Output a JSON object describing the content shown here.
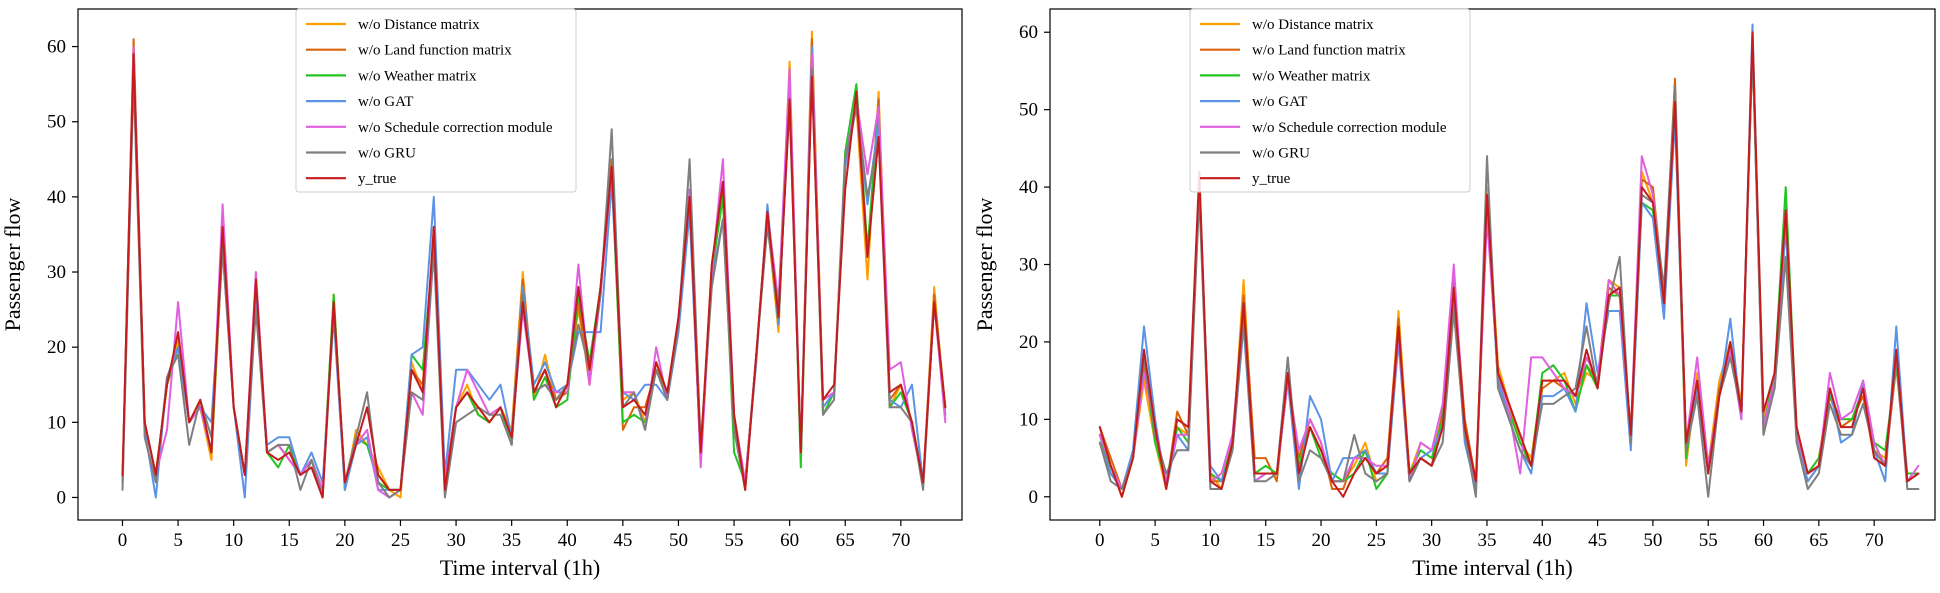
{
  "chart_data": [
    {
      "type": "line",
      "xlabel": "Time interval (1h)",
      "ylabel": "Passenger flow",
      "xlim": [
        -4,
        75.5
      ],
      "ylim": [
        -3,
        65
      ],
      "xticks": [
        0,
        5,
        10,
        15,
        20,
        25,
        30,
        35,
        40,
        45,
        50,
        55,
        60,
        65,
        70
      ],
      "yticks": [
        0,
        10,
        20,
        30,
        40,
        50,
        60
      ],
      "grid": false,
      "legend_position": "top-center",
      "series": [
        {
          "name": "w/o Distance matrix",
          "color": "#ff9f00",
          "values": [
            2,
            60,
            10,
            3,
            15,
            21,
            10,
            12,
            5,
            34,
            12,
            3,
            28,
            6,
            7,
            5,
            3,
            5,
            0,
            27,
            1,
            9,
            7,
            4,
            1,
            0,
            18,
            14,
            34,
            2,
            12,
            15,
            11,
            10,
            12,
            9,
            30,
            13,
            19,
            13,
            15,
            25,
            16,
            28,
            43,
            13,
            14,
            10,
            18,
            13,
            24,
            40,
            5,
            30,
            40,
            10,
            1,
            19,
            37,
            22,
            58,
            5,
            62,
            12,
            14,
            45,
            52,
            29,
            54,
            12,
            15,
            10,
            2,
            28,
            11
          ]
        },
        {
          "name": "w/o Land function matrix",
          "color": "#d9640c",
          "values": [
            2,
            61,
            10,
            3,
            15,
            20,
            10,
            12,
            6,
            35,
            12,
            3,
            28,
            6,
            7,
            5,
            3,
            5,
            1,
            26,
            2,
            8,
            7,
            3,
            1,
            1,
            17,
            15,
            34,
            2,
            12,
            14,
            11,
            10,
            12,
            8,
            29,
            14,
            17,
            13,
            14,
            26,
            15,
            28,
            45,
            9,
            12,
            12,
            17,
            14,
            23,
            39,
            5,
            31,
            41,
            11,
            2,
            19,
            37,
            23,
            56,
            5,
            61,
            13,
            14,
            44,
            53,
            32,
            53,
            13,
            15,
            10,
            2,
            27,
            12
          ]
        },
        {
          "name": "w/o Weather matrix",
          "color": "#22c522",
          "values": [
            2,
            59,
            10,
            3,
            15,
            20,
            10,
            12,
            6,
            34,
            12,
            3,
            27,
            6,
            4,
            7,
            3,
            5,
            1,
            27,
            1,
            8,
            7,
            2,
            1,
            1,
            19,
            17,
            34,
            2,
            12,
            14,
            11,
            10,
            12,
            7,
            28,
            13,
            16,
            12,
            13,
            27,
            18,
            28,
            43,
            10,
            11,
            10,
            17,
            13,
            23,
            40,
            5,
            30,
            40,
            6,
            2,
            19,
            38,
            23,
            55,
            4,
            58,
            11,
            14,
            46,
            55,
            33,
            52,
            12,
            14,
            10,
            2,
            26,
            11
          ]
        },
        {
          "name": "w/o GAT",
          "color": "#5b94e6",
          "values": [
            2,
            58,
            9,
            0,
            16,
            20,
            10,
            12,
            10,
            33,
            12,
            0,
            26,
            7,
            8,
            8,
            3,
            6,
            2,
            24,
            1,
            7,
            8,
            1,
            1,
            1,
            19,
            20,
            40,
            3,
            17,
            17,
            15,
            13,
            15,
            8,
            28,
            15,
            18,
            14,
            15,
            22,
            22,
            22,
            42,
            14,
            13,
            15,
            15,
            13,
            22,
            38,
            5,
            29,
            37,
            10,
            2,
            18,
            39,
            23,
            55,
            6,
            60,
            12,
            14,
            44,
            52,
            39,
            50,
            13,
            12,
            15,
            2,
            26,
            11
          ]
        },
        {
          "name": "w/o Schedule correction module",
          "color": "#e15fe1",
          "values": [
            2,
            60,
            10,
            3,
            9,
            26,
            10,
            12,
            6,
            39,
            12,
            3,
            30,
            6,
            7,
            5,
            3,
            5,
            1,
            25,
            2,
            7,
            9,
            1,
            0,
            1,
            14,
            11,
            33,
            2,
            12,
            17,
            14,
            11,
            12,
            8,
            25,
            14,
            15,
            14,
            14,
            31,
            15,
            27,
            44,
            14,
            14,
            9,
            20,
            13,
            24,
            41,
            4,
            30,
            45,
            11,
            2,
            19,
            38,
            26,
            57,
            6,
            59,
            13,
            14,
            45,
            53,
            43,
            52,
            17,
            18,
            9,
            2,
            26,
            10
          ]
        },
        {
          "name": "w/o GRU",
          "color": "#7f7f7f",
          "values": [
            1,
            56,
            8,
            2,
            16,
            19,
            7,
            13,
            8,
            33,
            12,
            3,
            25,
            6,
            7,
            7,
            1,
            5,
            0,
            25,
            2,
            8,
            14,
            2,
            0,
            1,
            14,
            13,
            33,
            0,
            10,
            11,
            12,
            11,
            11,
            7,
            27,
            14,
            15,
            13,
            15,
            23,
            17,
            27,
            49,
            12,
            14,
            9,
            17,
            13,
            23,
            45,
            7,
            28,
            37,
            9,
            1,
            19,
            36,
            25,
            52,
            6,
            57,
            11,
            13,
            45,
            52,
            40,
            48,
            12,
            12,
            10,
            1,
            26,
            12
          ]
        },
        {
          "name": "y_true",
          "color": "#c41c1c",
          "values": [
            3,
            59,
            10,
            3,
            15,
            22,
            10,
            13,
            6,
            36,
            12,
            3,
            29,
            6,
            5,
            6,
            3,
            4,
            0,
            26,
            2,
            7,
            12,
            3,
            1,
            1,
            17,
            14,
            36,
            1,
            12,
            14,
            12,
            10,
            12,
            8,
            26,
            14,
            17,
            12,
            15,
            28,
            17,
            28,
            44,
            12,
            13,
            11,
            18,
            14,
            24,
            40,
            6,
            31,
            42,
            11,
            1,
            19,
            38,
            24,
            53,
            6,
            56,
            13,
            15,
            41,
            54,
            32,
            48,
            14,
            15,
            10,
            2,
            26,
            12
          ]
        }
      ]
    },
    {
      "type": "line",
      "xlabel": "Time interval (1h)",
      "ylabel": "Passenger flow",
      "xlim": [
        -4.5,
        75.5
      ],
      "ylim": [
        -3,
        63
      ],
      "xticks": [
        0,
        5,
        10,
        15,
        20,
        25,
        30,
        35,
        40,
        45,
        50,
        55,
        60,
        65,
        70
      ],
      "yticks": [
        0,
        10,
        20,
        30,
        40,
        50,
        60
      ],
      "grid": false,
      "legend_position": "top-center",
      "series": [
        {
          "name": "w/o Distance matrix",
          "color": "#ff9f00",
          "values": [
            9,
            4,
            0,
            5,
            15,
            7,
            1,
            9,
            8,
            40,
            3,
            1,
            6,
            28,
            3,
            3,
            3,
            15,
            5,
            9,
            6,
            2,
            2,
            4,
            7,
            2,
            3,
            24,
            3,
            7,
            6,
            10,
            27,
            9,
            1,
            40,
            17,
            12,
            7,
            5,
            15,
            15,
            16,
            12,
            16,
            15,
            28,
            27,
            8,
            42,
            38,
            25,
            50,
            4,
            16,
            4,
            15,
            20,
            12,
            58,
            10,
            15,
            35,
            8,
            3,
            5,
            14,
            9,
            10,
            14,
            6,
            5,
            18,
            3,
            3
          ]
        },
        {
          "name": "w/o Land function matrix",
          "color": "#d9640c",
          "values": [
            9,
            5,
            1,
            5,
            17,
            9,
            1,
            11,
            8,
            41,
            2,
            2,
            7,
            26,
            5,
            5,
            2,
            16,
            5,
            10,
            7,
            1,
            1,
            5,
            6,
            3,
            5,
            23,
            2,
            5,
            4,
            11,
            28,
            10,
            2,
            38,
            16,
            12,
            8,
            4,
            14,
            15,
            14,
            13,
            17,
            15,
            27,
            26,
            7,
            41,
            40,
            26,
            54,
            6,
            15,
            3,
            14,
            19,
            11,
            59,
            8,
            15,
            36,
            7,
            2,
            4,
            13,
            9,
            10,
            13,
            5,
            4,
            17,
            2,
            3
          ]
        },
        {
          "name": "w/o Weather matrix",
          "color": "#22c522",
          "values": [
            8,
            3,
            1,
            5,
            18,
            7,
            2,
            9,
            7,
            40,
            3,
            2,
            7,
            25,
            3,
            4,
            3,
            15,
            4,
            9,
            5,
            3,
            2,
            3,
            6,
            1,
            3,
            21,
            3,
            6,
            5,
            10,
            25,
            8,
            1,
            37,
            15,
            11,
            7,
            4,
            16,
            17,
            15,
            11,
            17,
            14,
            26,
            26,
            8,
            38,
            37,
            24,
            51,
            5,
            15,
            4,
            13,
            19,
            11,
            59,
            9,
            16,
            40,
            8,
            3,
            5,
            13,
            10,
            10,
            14,
            7,
            6,
            17,
            3,
            3
          ]
        },
        {
          "name": "w/o GAT",
          "color": "#5b94e6",
          "values": [
            7,
            3,
            1,
            6,
            22,
            10,
            1,
            8,
            6,
            40,
            4,
            2,
            6,
            22,
            2,
            3,
            3,
            15,
            1,
            13,
            10,
            2,
            5,
            5,
            6,
            3,
            3,
            20,
            2,
            5,
            6,
            9,
            26,
            7,
            1,
            38,
            15,
            10,
            6,
            3,
            13,
            13,
            14,
            11,
            25,
            16,
            24,
            24,
            6,
            38,
            36,
            23,
            49,
            6,
            14,
            3,
            13,
            23,
            10,
            61,
            9,
            14,
            35,
            7,
            2,
            4,
            14,
            7,
            8,
            15,
            6,
            2,
            22,
            2,
            3
          ]
        },
        {
          "name": "w/o Schedule correction module",
          "color": "#e15fe1",
          "values": [
            8,
            4,
            1,
            5,
            16,
            9,
            2,
            8,
            8,
            41,
            2,
            3,
            8,
            24,
            2,
            3,
            3,
            15,
            6,
            10,
            7,
            2,
            2,
            5,
            5,
            4,
            4,
            21,
            2,
            7,
            6,
            12,
            30,
            8,
            2,
            36,
            16,
            11,
            3,
            18,
            18,
            16,
            14,
            13,
            18,
            15,
            28,
            26,
            8,
            44,
            39,
            26,
            52,
            7,
            18,
            4,
            13,
            19,
            10,
            59,
            9,
            15,
            37,
            8,
            3,
            4,
            16,
            10,
            11,
            15,
            7,
            4,
            18,
            2,
            4
          ]
        },
        {
          "name": "w/o GRU",
          "color": "#7f7f7f",
          "values": [
            7,
            2,
            1,
            5,
            18,
            8,
            3,
            6,
            6,
            39,
            1,
            1,
            6,
            23,
            2,
            2,
            3,
            18,
            2,
            6,
            5,
            2,
            2,
            8,
            3,
            2,
            3,
            22,
            2,
            5,
            4,
            7,
            24,
            8,
            0,
            44,
            14,
            10,
            6,
            4,
            12,
            12,
            13,
            14,
            22,
            14,
            25,
            31,
            7,
            39,
            38,
            27,
            53,
            6,
            13,
            0,
            13,
            18,
            11,
            58,
            8,
            14,
            31,
            7,
            1,
            3,
            12,
            8,
            8,
            12,
            6,
            4,
            18,
            1,
            1
          ]
        },
        {
          "name": "y_true",
          "color": "#c41c1c",
          "values": [
            9,
            4,
            0,
            5,
            19,
            9,
            1,
            10,
            9,
            42,
            2,
            1,
            7,
            25,
            3,
            3,
            3,
            16,
            3,
            9,
            6,
            2,
            0,
            3,
            5,
            3,
            4,
            22,
            3,
            5,
            4,
            9,
            27,
            9,
            2,
            39,
            16,
            12,
            8,
            4,
            15,
            15,
            15,
            13,
            19,
            14,
            26,
            27,
            8,
            40,
            38,
            25,
            51,
            7,
            15,
            3,
            13,
            20,
            11,
            60,
            11,
            16,
            37,
            9,
            3,
            4,
            14,
            9,
            9,
            14,
            5,
            4,
            19,
            2,
            3
          ]
        }
      ]
    }
  ]
}
